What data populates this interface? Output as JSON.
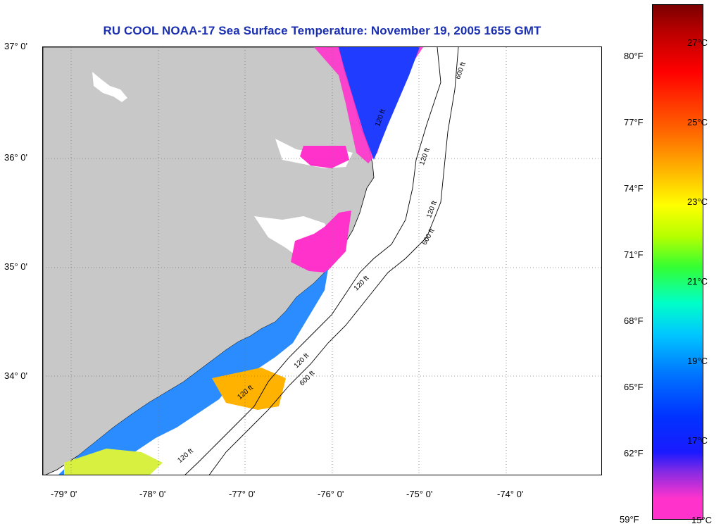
{
  "title": "RU COOL  NOAA-17  Sea Surface Temperature:  November 19, 2005 1655 GMT",
  "lat_labels": [
    "37° 0'",
    "36° 0'",
    "35° 0'",
    "34° 0'"
  ],
  "lon_labels": [
    "-79° 0'",
    "-78° 0'",
    "-77° 0'",
    "-76° 0'",
    "-75° 0'",
    "-74° 0'"
  ],
  "fahrenheit_labels": [
    "80°F",
    "77°F",
    "74°F",
    "71°F",
    "68°F",
    "65°F",
    "62°F",
    "59°F"
  ],
  "celsius_labels": [
    "27°C",
    "25°C",
    "23°C",
    "21°C",
    "19°C",
    "17°C",
    "15°C"
  ],
  "contour_labels": [
    "600 ft",
    "120 ft",
    "120 ft",
    "120 ft",
    "600 ft",
    "120 ft",
    "120 ft",
    "600 ft",
    "120 ft",
    "120 ft"
  ],
  "colors": {
    "title": "#1a2fb0",
    "land": "#c8c8c8",
    "cold": "#ff33cc",
    "warm": "#ffb300"
  }
}
